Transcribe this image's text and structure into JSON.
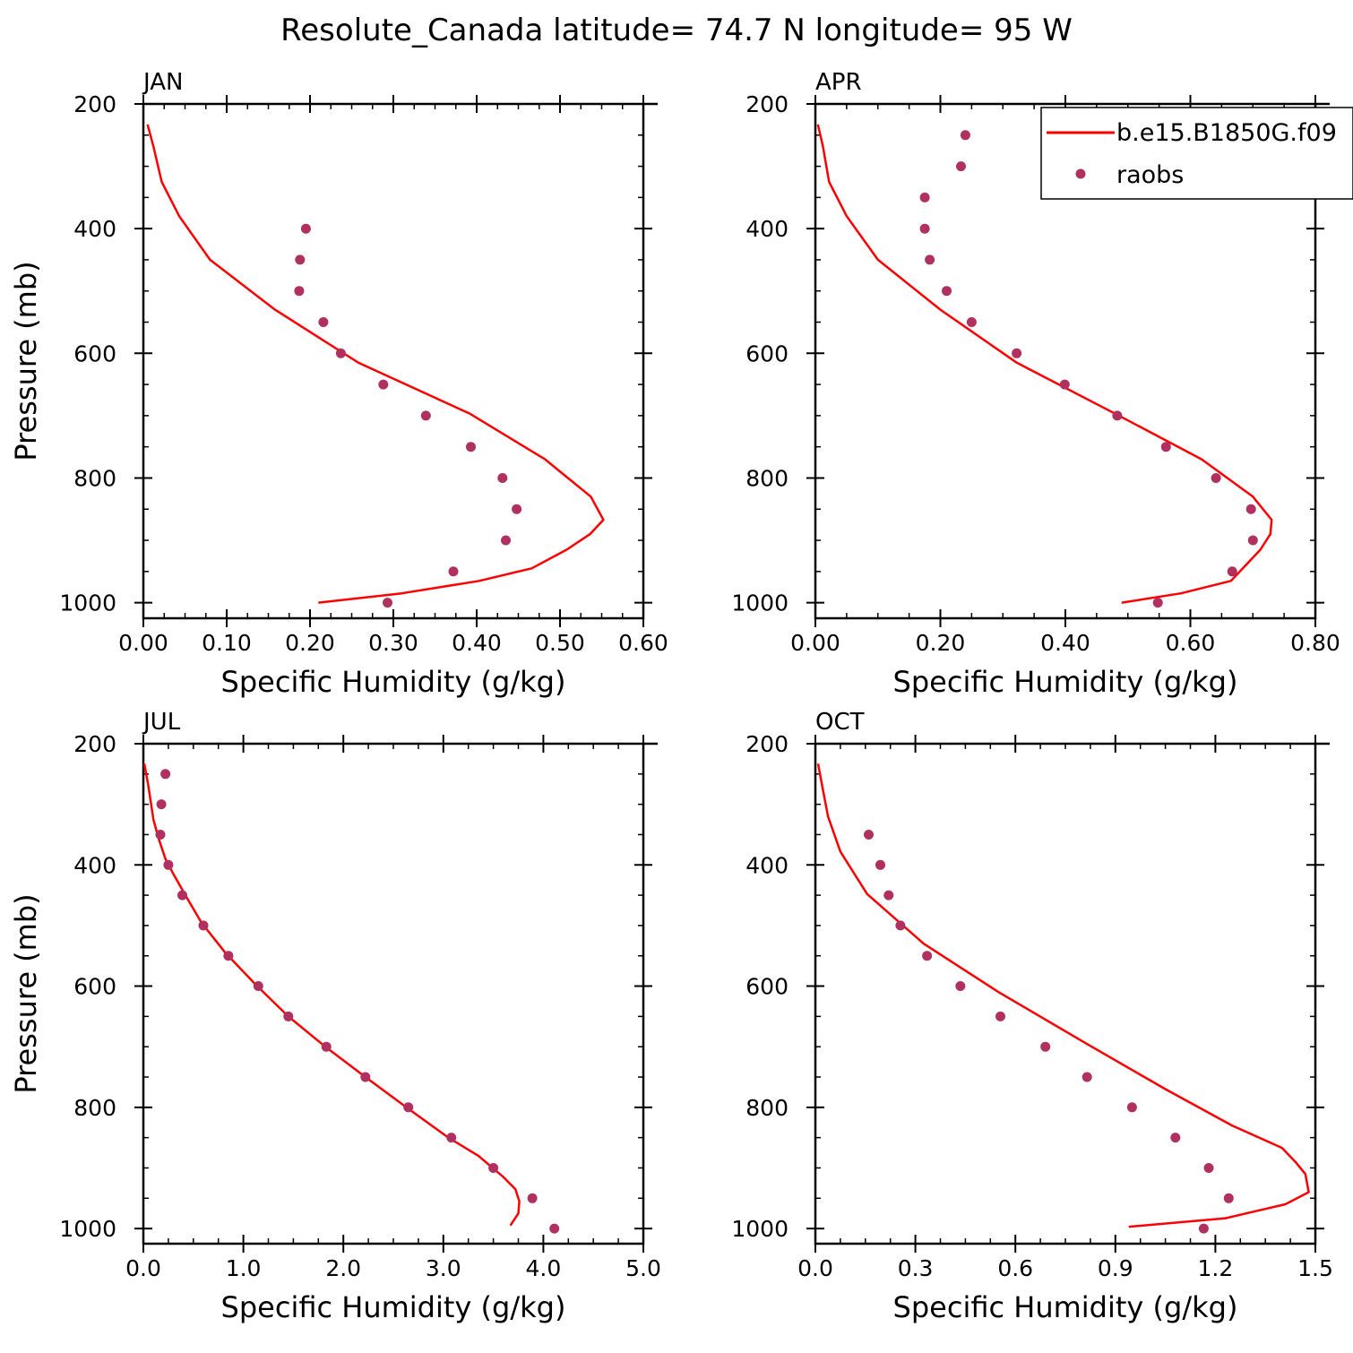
{
  "title": "Resolute_Canada  latitude= 74.7 N longitude= 95 W",
  "colors": {
    "model": "#ff0000",
    "raobs": "#b03060",
    "axis": "#000000"
  },
  "legend": {
    "model_label": "b.e15.B1850G.f09",
    "obs_label": "raobs",
    "position": "top-right of APR panel"
  },
  "chart_data": [
    {
      "type": "line",
      "panel": "JAN",
      "xlabel": "Specific Humidity (g/kg)",
      "ylabel": "Pressure (mb)",
      "xlim": [
        0,
        0.6
      ],
      "ylim": [
        1025,
        200
      ],
      "xticks": [
        0,
        0.1,
        0.2,
        0.3,
        0.4,
        0.5,
        0.6
      ],
      "xtick_labels": [
        "0.00",
        "0.10",
        "0.20",
        "0.30",
        "0.40",
        "0.50",
        "0.60"
      ],
      "yticks": [
        200,
        400,
        600,
        800,
        1000
      ],
      "ytick_labels": [
        "200",
        "400",
        "600",
        "800",
        "1000"
      ],
      "series": [
        {
          "name": "b.e15.B1850G.f09",
          "kind": "line",
          "x": [
            0.005,
            0.012,
            0.022,
            0.043,
            0.08,
            0.158,
            0.258,
            0.392,
            0.482,
            0.537,
            0.552,
            0.536,
            0.508,
            0.466,
            0.403,
            0.31,
            0.21
          ],
          "y": [
            233,
            268,
            325,
            380,
            450,
            530,
            615,
            697,
            770,
            830,
            867,
            890,
            915,
            945,
            965,
            985,
            1000
          ]
        },
        {
          "name": "raobs",
          "kind": "scatter",
          "x": [
            0.195,
            0.188,
            0.187,
            0.216,
            0.237,
            0.288,
            0.339,
            0.393,
            0.431,
            0.448,
            0.435,
            0.372,
            0.293
          ],
          "y": [
            400,
            450,
            500,
            550,
            600,
            650,
            700,
            750,
            800,
            850,
            900,
            950,
            1000
          ]
        }
      ]
    },
    {
      "type": "line",
      "panel": "APR",
      "xlabel": "Specific Humidity (g/kg)",
      "ylabel": "",
      "xlim": [
        0,
        0.8
      ],
      "ylim": [
        1025,
        200
      ],
      "xticks": [
        0,
        0.2,
        0.4,
        0.6,
        0.8
      ],
      "xtick_labels": [
        "0.00",
        "0.20",
        "0.40",
        "0.60",
        "0.80"
      ],
      "yticks": [
        200,
        400,
        600,
        800,
        1000
      ],
      "ytick_labels": [
        "200",
        "400",
        "600",
        "800",
        "1000"
      ],
      "series": [
        {
          "name": "b.e15.B1850G.f09",
          "kind": "line",
          "x": [
            0.004,
            0.012,
            0.022,
            0.05,
            0.1,
            0.2,
            0.322,
            0.48,
            0.618,
            0.7,
            0.73,
            0.728,
            0.712,
            0.665,
            0.585,
            0.49
          ],
          "y": [
            233,
            268,
            325,
            380,
            450,
            530,
            615,
            697,
            770,
            830,
            867,
            890,
            915,
            965,
            985,
            1000
          ]
        },
        {
          "name": "raobs",
          "kind": "scatter",
          "x": [
            0.24,
            0.233,
            0.175,
            0.175,
            0.183,
            0.21,
            0.25,
            0.322,
            0.399,
            0.483,
            0.561,
            0.641,
            0.697,
            0.7,
            0.667,
            0.548
          ],
          "y": [
            250,
            300,
            350,
            400,
            450,
            500,
            550,
            600,
            650,
            700,
            750,
            800,
            850,
            900,
            950,
            1000
          ]
        }
      ]
    },
    {
      "type": "line",
      "panel": "JUL",
      "xlabel": "Specific Humidity (g/kg)",
      "ylabel": "Pressure (mb)",
      "xlim": [
        0,
        5
      ],
      "ylim": [
        1025,
        200
      ],
      "xticks": [
        0,
        1,
        2,
        3,
        4,
        5
      ],
      "xtick_labels": [
        "0.0",
        "1.0",
        "2.0",
        "3.0",
        "4.0",
        "5.0"
      ],
      "yticks": [
        200,
        400,
        600,
        800,
        1000
      ],
      "ytick_labels": [
        "200",
        "400",
        "600",
        "800",
        "1000"
      ],
      "series": [
        {
          "name": "b.e15.B1850G.f09",
          "kind": "line",
          "x": [
            0.01,
            0.05,
            0.1,
            0.15,
            0.22,
            0.3,
            0.42,
            0.58,
            0.82,
            1.12,
            1.45,
            1.82,
            2.22,
            2.63,
            3.05,
            3.35,
            3.6,
            3.72,
            3.76,
            3.75,
            3.67
          ],
          "y": [
            233,
            270,
            325,
            355,
            390,
            415,
            450,
            495,
            545,
            597,
            650,
            700,
            750,
            800,
            850,
            880,
            915,
            935,
            955,
            975,
            995
          ]
        },
        {
          "name": "raobs",
          "kind": "scatter",
          "x": [
            0.22,
            0.18,
            0.17,
            0.25,
            0.39,
            0.6,
            0.85,
            1.15,
            1.45,
            1.83,
            2.22,
            2.65,
            3.08,
            3.5,
            3.89,
            4.11
          ],
          "y": [
            250,
            300,
            350,
            400,
            450,
            500,
            550,
            600,
            650,
            700,
            750,
            800,
            850,
            900,
            950,
            1000
          ]
        }
      ]
    },
    {
      "type": "line",
      "panel": "OCT",
      "xlabel": "Specific Humidity (g/kg)",
      "ylabel": "",
      "xlim": [
        0,
        1.5
      ],
      "ylim": [
        1025,
        200
      ],
      "xticks": [
        0,
        0.3,
        0.6,
        0.9,
        1.2,
        1.5
      ],
      "xtick_labels": [
        "0.0",
        "0.3",
        "0.6",
        "0.9",
        "1.2",
        "1.5"
      ],
      "yticks": [
        200,
        400,
        600,
        800,
        1000
      ],
      "ytick_labels": [
        "200",
        "400",
        "600",
        "800",
        "1000"
      ],
      "series": [
        {
          "name": "b.e15.B1850G.f09",
          "kind": "line",
          "x": [
            0.008,
            0.02,
            0.038,
            0.075,
            0.155,
            0.325,
            0.55,
            0.82,
            1.05,
            1.25,
            1.4,
            1.44,
            1.47,
            1.48,
            1.41,
            1.23,
            0.94
          ],
          "y": [
            233,
            268,
            320,
            378,
            448,
            530,
            610,
            697,
            770,
            830,
            867,
            890,
            910,
            940,
            960,
            983,
            997
          ]
        },
        {
          "name": "raobs",
          "kind": "scatter",
          "x": [
            0.16,
            0.195,
            0.22,
            0.255,
            0.335,
            0.435,
            0.555,
            0.69,
            0.815,
            0.95,
            1.08,
            1.18,
            1.24,
            1.165
          ],
          "y": [
            350,
            400,
            450,
            500,
            550,
            600,
            650,
            700,
            750,
            800,
            850,
            900,
            950,
            1000
          ]
        }
      ]
    }
  ]
}
